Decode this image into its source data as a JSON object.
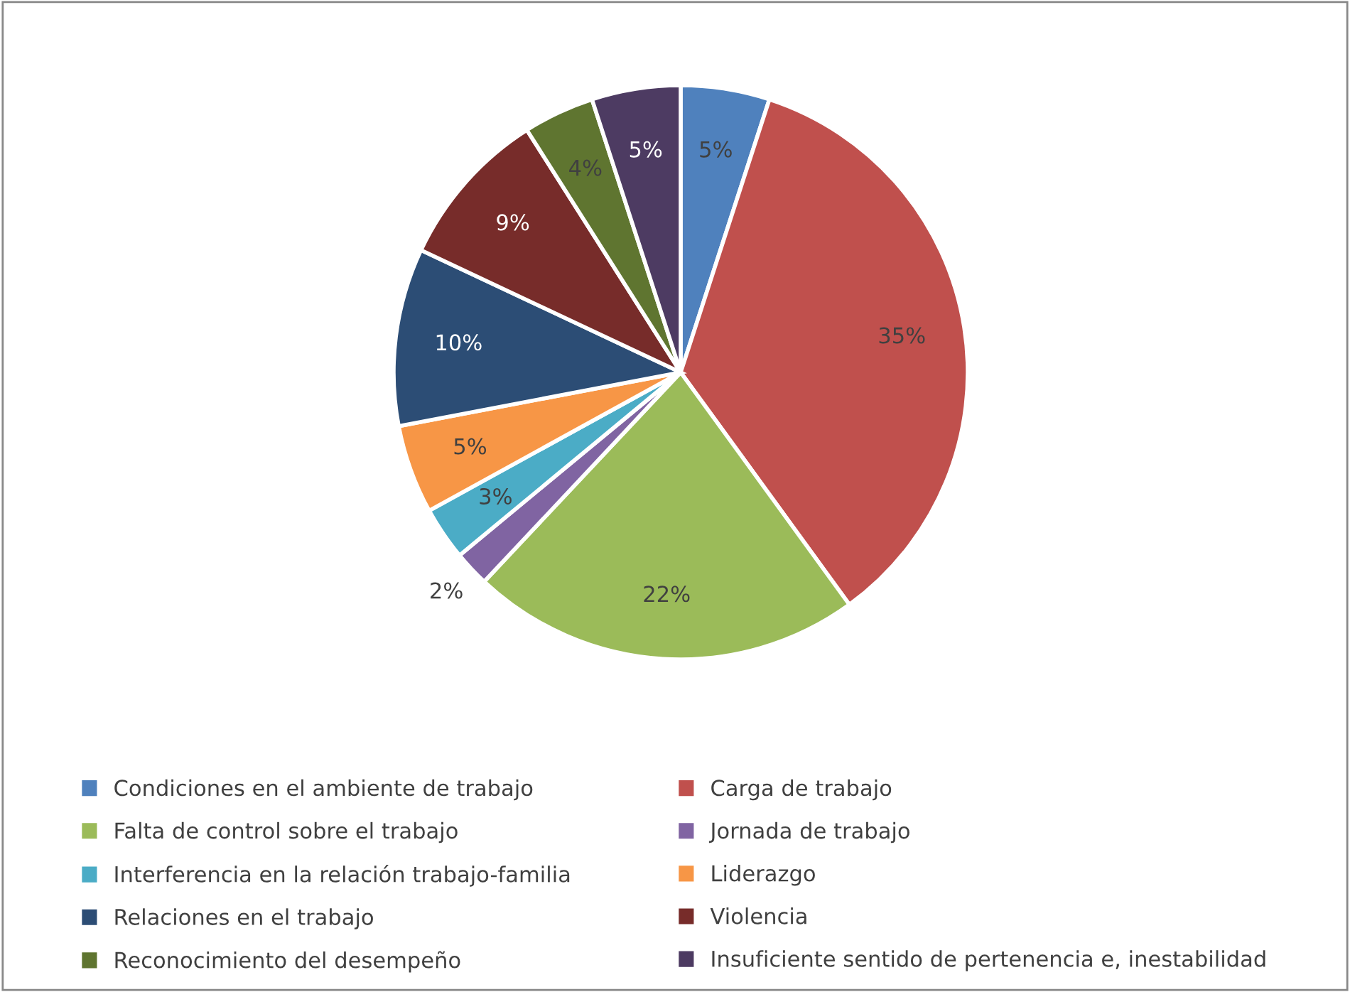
{
  "chart_data": {
    "type": "pie",
    "categories": [
      "Condiciones en el ambiente de trabajo",
      "Carga de trabajo",
      "Falta de control sobre el trabajo",
      "Jornada de trabajo",
      "Interferencia en la relación trabajo-familia",
      "Liderazgo",
      "Relaciones en el trabajo",
      "Violencia",
      "Reconocimiento del desempeño",
      "Insuficiente sentido de pertenencia e, inestabilidad"
    ],
    "values": [
      5,
      35,
      22,
      2,
      3,
      5,
      10,
      9,
      4,
      5
    ],
    "colors": [
      "#4f81bd",
      "#c0504d",
      "#9bbb59",
      "#8064a2",
      "#4bacc6",
      "#f79646",
      "#2c4d75",
      "#772c2a",
      "#5f7530",
      "#4d3b62"
    ],
    "value_labels": [
      "5%",
      "35%",
      "22%",
      "2%",
      "3%",
      "5%",
      "10%",
      "9%",
      "4%",
      "5%"
    ],
    "legend": "bottom"
  }
}
